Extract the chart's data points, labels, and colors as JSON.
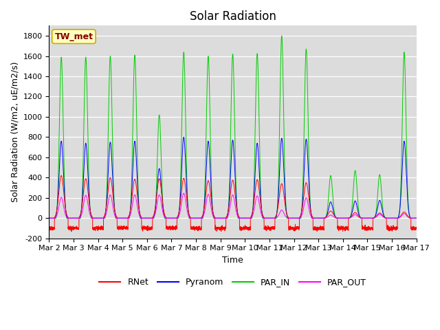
{
  "title": "Solar Radiation",
  "ylabel": "Solar Radiation (W/m2, uE/m2/s)",
  "xlabel": "Time",
  "ylim": [
    -200,
    1900
  ],
  "yticks": [
    -200,
    0,
    200,
    400,
    600,
    800,
    1000,
    1200,
    1400,
    1600,
    1800
  ],
  "xtick_labels": [
    "Mar 2",
    "Mar 3",
    "Mar 4",
    "Mar 5",
    "Mar 6",
    "Mar 7",
    "Mar 8",
    "Mar 9",
    "Mar 10",
    "Mar 11",
    "Mar 12",
    "Mar 13",
    "Mar 14",
    "Mar 15",
    "Mar 16",
    "Mar 17"
  ],
  "station_label": "TW_met",
  "legend_labels": [
    "RNet",
    "Pyranom",
    "PAR_IN",
    "PAR_OUT"
  ],
  "line_colors": [
    "#ff0000",
    "#0000ff",
    "#00cc00",
    "#ff00ff"
  ],
  "background_color": "#dcdcdc",
  "title_fontsize": 12,
  "label_fontsize": 9,
  "tick_fontsize": 8,
  "n_days": 15,
  "daily_peaks": {
    "RNet": [
      420,
      390,
      400,
      385,
      390,
      395,
      370,
      375,
      380,
      340,
      350,
      70,
      55,
      50,
      60
    ],
    "Pyranom": [
      760,
      740,
      750,
      760,
      490,
      800,
      760,
      770,
      740,
      790,
      780,
      160,
      170,
      175,
      760
    ],
    "PAR_IN": [
      1590,
      1590,
      1600,
      1610,
      1020,
      1640,
      1600,
      1620,
      1625,
      1800,
      1670,
      420,
      470,
      430,
      1640
    ],
    "PAR_OUT": [
      205,
      225,
      230,
      230,
      230,
      245,
      235,
      230,
      220,
      80,
      200,
      30,
      35,
      40,
      45
    ],
    "RNet_night": -100,
    "Pyranom_night": 0,
    "PAR_IN_night": 0,
    "PAR_OUT_night": 0
  }
}
